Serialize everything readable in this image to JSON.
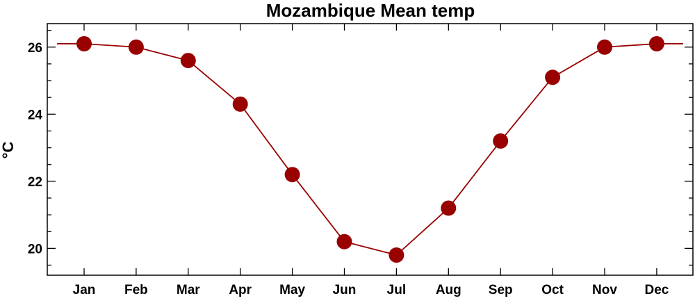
{
  "chart_data": {
    "type": "line",
    "title": "Mozambique Mean temp",
    "xlabel": "",
    "ylabel": "°C",
    "categories": [
      "Jan",
      "Feb",
      "Mar",
      "Apr",
      "May",
      "Jun",
      "Jul",
      "Aug",
      "Sep",
      "Oct",
      "Nov",
      "Dec"
    ],
    "series": [
      {
        "values": [
          26.1,
          26.0,
          25.6,
          24.3,
          22.2,
          20.2,
          19.8,
          21.2,
          23.2,
          25.1,
          26.0,
          26.1
        ]
      }
    ],
    "ylim": [
      19.2,
      26.7
    ],
    "yticks": [
      20,
      22,
      24,
      26
    ],
    "grid": false,
    "line_extends_to_frame_edges": true,
    "colors": {
      "line": "#990000",
      "marker": "#990000",
      "axes": "#000000"
    }
  }
}
